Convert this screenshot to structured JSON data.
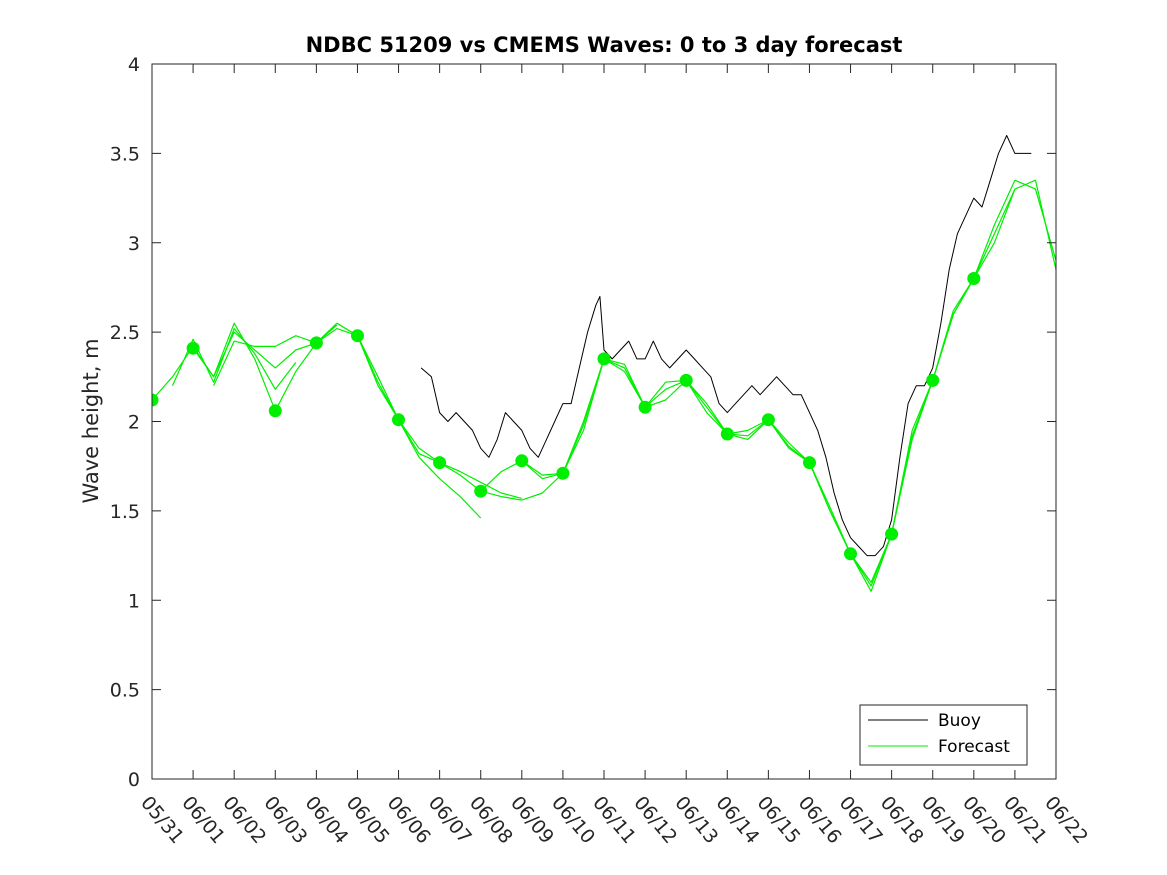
{
  "chart_data": {
    "type": "line",
    "title": "NDBC 51209 vs CMEMS Waves: 0 to 3 day forecast",
    "xlabel": "",
    "ylabel": "Wave height, m",
    "x_ticks": [
      "05/31",
      "06/01",
      "06/02",
      "06/03",
      "06/04",
      "06/05",
      "06/06",
      "06/07",
      "06/08",
      "06/09",
      "06/10",
      "06/11",
      "06/12",
      "06/13",
      "06/14",
      "06/15",
      "06/16",
      "06/17",
      "06/18",
      "06/19",
      "06/20",
      "06/21",
      "06/22"
    ],
    "xlim": [
      0,
      22
    ],
    "ylim": [
      0,
      4
    ],
    "y_ticks": [
      0,
      0.5,
      1,
      1.5,
      2,
      2.5,
      3,
      3.5,
      4
    ],
    "y_tick_labels": [
      "0",
      "0.5",
      "1",
      "1.5",
      "2",
      "2.5",
      "3",
      "3.5",
      "4"
    ],
    "x_units": "days since 05/31",
    "grid": false,
    "legend": {
      "position": "bottom-right",
      "entries": [
        "Buoy",
        "Forecast"
      ]
    },
    "colors": {
      "buoy": "#000000",
      "forecast": "#00ee00"
    },
    "series": [
      {
        "name": "Buoy",
        "x": [
          6.55,
          6.8,
          7.0,
          7.2,
          7.4,
          7.6,
          7.8,
          8.0,
          8.2,
          8.4,
          8.6,
          8.8,
          9.0,
          9.2,
          9.4,
          9.6,
          9.8,
          10.0,
          10.2,
          10.4,
          10.6,
          10.8,
          10.9,
          11.0,
          11.2,
          11.4,
          11.6,
          11.8,
          12.0,
          12.2,
          12.4,
          12.6,
          12.8,
          13.0,
          13.2,
          13.4,
          13.6,
          13.8,
          14.0,
          14.2,
          14.4,
          14.6,
          14.8,
          15.0,
          15.2,
          15.4,
          15.6,
          15.8,
          16.0,
          16.2,
          16.4,
          16.6,
          16.8,
          17.0,
          17.2,
          17.4,
          17.6,
          17.8,
          18.0,
          18.2,
          18.4,
          18.6,
          18.8,
          19.0,
          19.2,
          19.4,
          19.6,
          19.8,
          20.0,
          20.2,
          20.4,
          20.6,
          20.8,
          21.0,
          21.2,
          21.4
        ],
        "y": [
          2.3,
          2.25,
          2.05,
          2.0,
          2.05,
          2.0,
          1.95,
          1.85,
          1.8,
          1.9,
          2.05,
          2.0,
          1.95,
          1.85,
          1.8,
          1.9,
          2.0,
          2.1,
          2.1,
          2.3,
          2.5,
          2.65,
          2.7,
          2.4,
          2.35,
          2.4,
          2.45,
          2.35,
          2.35,
          2.45,
          2.35,
          2.3,
          2.35,
          2.4,
          2.35,
          2.3,
          2.25,
          2.1,
          2.05,
          2.1,
          2.15,
          2.2,
          2.15,
          2.2,
          2.25,
          2.2,
          2.15,
          2.15,
          2.05,
          1.95,
          1.8,
          1.6,
          1.45,
          1.35,
          1.3,
          1.25,
          1.25,
          1.3,
          1.45,
          1.8,
          2.1,
          2.2,
          2.2,
          2.3,
          2.55,
          2.85,
          3.05,
          3.15,
          3.25,
          3.2,
          3.35,
          3.5,
          3.6,
          3.5,
          3.5,
          3.5
        ]
      },
      {
        "name": "Forecast",
        "x": [
          0,
          0.5,
          1.0,
          1.5,
          2.0,
          2.5,
          3.0
        ],
        "y": [
          2.12,
          2.25,
          2.42,
          2.25,
          2.55,
          2.35,
          2.06
        ]
      },
      {
        "x": [
          0.5,
          1.0,
          1.5,
          2.0,
          2.5,
          3.0,
          3.5
        ],
        "y": [
          2.2,
          2.46,
          2.22,
          2.52,
          2.38,
          2.18,
          2.33
        ]
      },
      {
        "x": [
          1.0,
          1.5,
          2.0,
          2.5,
          3.0,
          3.5,
          4.0
        ],
        "y": [
          2.41,
          2.25,
          2.5,
          2.4,
          2.3,
          2.4,
          2.44
        ]
      },
      {
        "x": [
          1.5,
          2.0,
          2.5,
          3.0,
          3.5,
          4.0,
          4.5
        ],
        "y": [
          2.2,
          2.45,
          2.42,
          2.42,
          2.48,
          2.44,
          2.54
        ]
      },
      {
        "x": [
          3.0,
          3.5,
          4.0,
          4.5,
          5.0,
          5.5,
          6.0
        ],
        "y": [
          2.06,
          2.28,
          2.44,
          2.52,
          2.48,
          2.2,
          2.01
        ]
      },
      {
        "x": [
          4.0,
          4.5,
          5.0,
          5.5,
          6.0,
          6.5,
          7.0
        ],
        "y": [
          2.44,
          2.55,
          2.48,
          2.22,
          2.01,
          1.85,
          1.77
        ]
      },
      {
        "x": [
          5.0,
          5.5,
          6.0,
          6.5,
          7.0,
          7.5,
          8.0
        ],
        "y": [
          2.48,
          2.25,
          2.01,
          1.8,
          1.68,
          1.58,
          1.46
        ]
      },
      {
        "x": [
          6.0,
          6.5,
          7.0,
          7.5,
          8.0,
          8.5,
          9.0
        ],
        "y": [
          2.01,
          1.82,
          1.77,
          1.72,
          1.66,
          1.6,
          1.57
        ]
      },
      {
        "x": [
          7.0,
          7.5,
          8.0,
          8.5,
          9.0,
          9.5,
          10.0
        ],
        "y": [
          1.77,
          1.7,
          1.61,
          1.58,
          1.56,
          1.6,
          1.71
        ]
      },
      {
        "x": [
          8.0,
          8.5,
          9.0,
          9.5,
          10.0,
          10.5,
          11.0
        ],
        "y": [
          1.61,
          1.72,
          1.78,
          1.7,
          1.71,
          1.95,
          2.35
        ]
      },
      {
        "x": [
          9.0,
          9.5,
          10.0,
          10.5,
          11.0,
          11.5,
          12.0
        ],
        "y": [
          1.78,
          1.68,
          1.71,
          2.0,
          2.35,
          2.28,
          2.08
        ]
      },
      {
        "x": [
          10.0,
          10.5,
          11.0,
          11.5,
          12.0,
          12.5,
          13.0
        ],
        "y": [
          1.71,
          1.98,
          2.35,
          2.32,
          2.08,
          2.12,
          2.23
        ]
      },
      {
        "x": [
          11.0,
          11.5,
          12.0,
          12.5,
          13.0,
          13.5,
          14.0
        ],
        "y": [
          2.35,
          2.3,
          2.08,
          2.18,
          2.23,
          2.05,
          1.93
        ]
      },
      {
        "x": [
          12.0,
          12.5,
          13.0,
          13.5,
          14.0,
          14.5,
          15.0
        ],
        "y": [
          2.08,
          2.22,
          2.23,
          2.08,
          1.93,
          1.92,
          2.01
        ]
      },
      {
        "x": [
          13.0,
          13.5,
          14.0,
          14.5,
          15.0,
          15.5,
          16.0
        ],
        "y": [
          2.23,
          2.1,
          1.93,
          1.95,
          2.01,
          1.88,
          1.77
        ]
      },
      {
        "x": [
          14.0,
          14.5,
          15.0,
          15.5,
          16.0,
          16.5,
          17.0
        ],
        "y": [
          1.93,
          1.9,
          2.01,
          1.85,
          1.77,
          1.52,
          1.26
        ]
      },
      {
        "x": [
          15.0,
          15.5,
          16.0,
          16.5,
          17.0,
          17.5,
          18.0
        ],
        "y": [
          2.01,
          1.86,
          1.77,
          1.5,
          1.26,
          1.1,
          1.37
        ]
      },
      {
        "x": [
          16.0,
          16.5,
          17.0,
          17.5,
          18.0,
          18.5,
          19.0
        ],
        "y": [
          1.77,
          1.5,
          1.26,
          1.08,
          1.37,
          1.95,
          2.23
        ]
      },
      {
        "x": [
          17.0,
          17.5,
          18.0,
          18.5,
          19.0,
          19.5,
          20.0
        ],
        "y": [
          1.26,
          1.05,
          1.37,
          1.92,
          2.23,
          2.6,
          2.8
        ]
      },
      {
        "x": [
          18.0,
          18.5,
          19.0,
          19.5,
          20.0,
          20.5,
          21.0
        ],
        "y": [
          1.37,
          1.9,
          2.23,
          2.6,
          2.8,
          3.0,
          3.3
        ]
      },
      {
        "x": [
          19.0,
          19.5,
          20.0,
          20.5,
          21.0,
          21.5,
          22.0
        ],
        "y": [
          2.23,
          2.62,
          2.8,
          3.05,
          3.3,
          3.35,
          2.85
        ]
      },
      {
        "x": [
          20.0,
          20.5,
          21.0,
          21.5,
          22.0
        ],
        "y": [
          2.8,
          3.1,
          3.35,
          3.3,
          2.9
        ]
      }
    ],
    "forecast_markers": {
      "x": [
        0,
        1,
        3,
        4,
        5,
        6,
        7,
        8,
        9,
        10,
        11,
        12,
        13,
        14,
        15,
        16,
        17,
        18,
        19,
        20
      ],
      "y": [
        2.12,
        2.41,
        2.06,
        2.44,
        2.48,
        2.01,
        1.77,
        1.61,
        1.78,
        1.71,
        2.35,
        2.08,
        2.23,
        1.93,
        2.01,
        1.77,
        1.26,
        1.37,
        2.23,
        2.8
      ]
    }
  }
}
